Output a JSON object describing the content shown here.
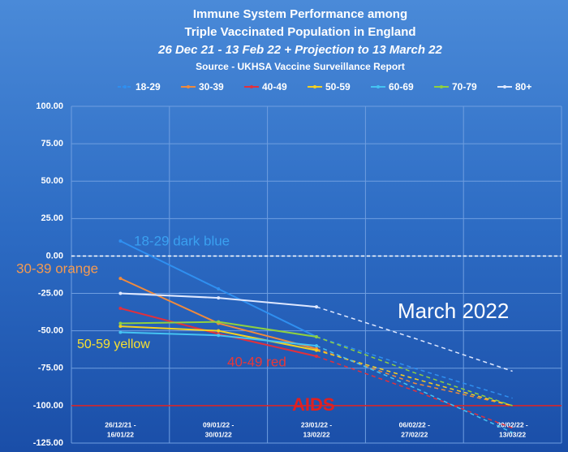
{
  "chart_data": {
    "type": "line",
    "title": [
      "Immune System Performance among",
      "Triple Vaccinated Population in England"
    ],
    "subtitle": "26 Dec 21 - 13 Feb 22 + Projection to 13 March 22",
    "source": "Source - UKHSA Vaccine Surveillance Report",
    "categories": [
      [
        "26/12/21 -",
        "16/01/22"
      ],
      [
        "09/01/22 -",
        "30/01/22"
      ],
      [
        "23/01/22 -",
        "13/02/22"
      ],
      [
        "06/02/22 -",
        "27/02/22"
      ],
      [
        "20/02/22 -",
        "13/03/22"
      ]
    ],
    "series": [
      {
        "name": "18-29",
        "color": "#2f8ff0",
        "values": [
          10,
          -22,
          -54,
          null,
          null
        ],
        "projected": [
          null,
          null,
          -54,
          -75,
          -95
        ]
      },
      {
        "name": "30-39",
        "color": "#f08a3c",
        "values": [
          -15,
          -45,
          -62,
          null,
          null
        ],
        "projected": [
          null,
          null,
          -62,
          -85,
          -100
        ]
      },
      {
        "name": "40-49",
        "color": "#e2303c",
        "values": [
          -35,
          -52,
          -67,
          null,
          null
        ],
        "projected": [
          null,
          null,
          -67,
          -90,
          -115
        ]
      },
      {
        "name": "50-59",
        "color": "#f5d020",
        "values": [
          -47,
          -50,
          -63,
          null,
          null
        ],
        "projected": [
          null,
          null,
          -63,
          -82,
          -100
        ]
      },
      {
        "name": "60-69",
        "color": "#45c3f2",
        "values": [
          -51,
          -53,
          -60,
          null,
          null
        ],
        "projected": [
          null,
          null,
          -60,
          -88,
          -118
        ]
      },
      {
        "name": "70-79",
        "color": "#8fd040",
        "values": [
          -45,
          -44,
          -54,
          null,
          null
        ],
        "projected": [
          null,
          null,
          -54,
          -78,
          -100
        ]
      },
      {
        "name": "80+",
        "color": "#dfe8ff",
        "values": [
          -25,
          -28,
          -34,
          null,
          null
        ],
        "projected": [
          null,
          null,
          -34,
          -55,
          -77
        ]
      }
    ],
    "ylim": [
      -125,
      100
    ],
    "yticks": [
      {
        "value": 100,
        "label": "100.00"
      },
      {
        "value": 75,
        "label": "75.00"
      },
      {
        "value": 50,
        "label": "50.00"
      },
      {
        "value": 25,
        "label": "25.00"
      },
      {
        "value": 0,
        "label": "0.00"
      },
      {
        "value": -25,
        "label": "-25.00"
      },
      {
        "value": -50,
        "label": "-50.00"
      },
      {
        "value": -75,
        "label": "-75.00"
      },
      {
        "value": -100,
        "label": "-100.00"
      },
      {
        "value": -125,
        "label": "-125.00"
      }
    ],
    "reference_lines": [
      {
        "value": 0,
        "color": "#ffffff",
        "dashed": true
      },
      {
        "value": -100,
        "color": "#e02020",
        "dashed": false
      }
    ],
    "annotations": [
      {
        "text": "18-29 dark blue",
        "color": "#3aa0f0",
        "size": 17
      },
      {
        "text": "30-39 orange",
        "color": "#f59a50",
        "size": 17
      },
      {
        "text": "50-59 yellow",
        "color": "#f8e030",
        "size": 16
      },
      {
        "text": "40-49 red",
        "color": "#e83838",
        "size": 17
      },
      {
        "text": "March 2022",
        "color": "#ffffff",
        "size": 26
      },
      {
        "text": "AIDS",
        "color": "#e02020",
        "size": 22
      }
    ],
    "grid": true
  }
}
